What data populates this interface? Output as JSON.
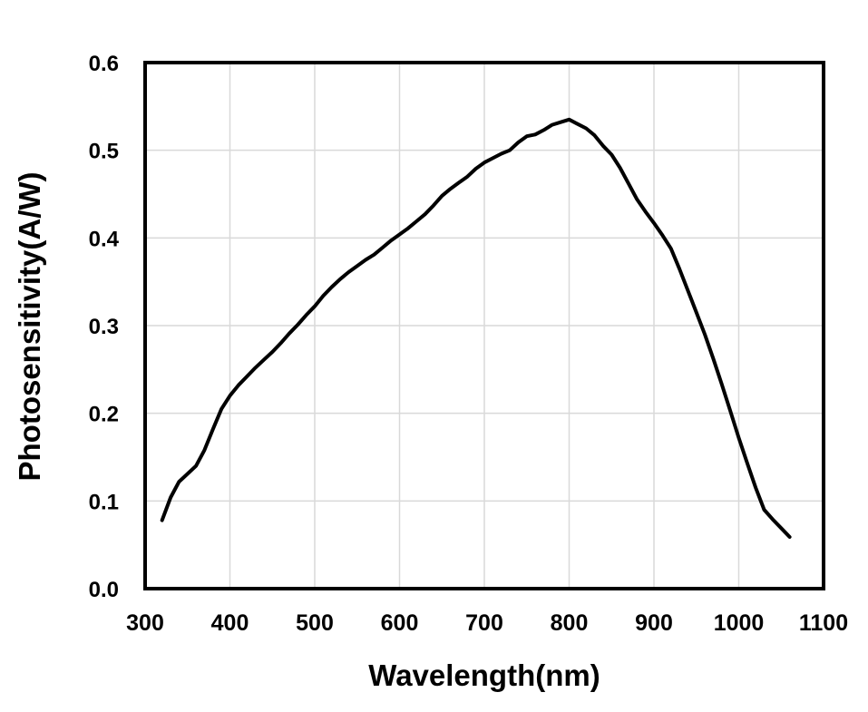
{
  "chart_data": {
    "type": "line",
    "title": "",
    "xlabel": "Wavelength(nm)",
    "ylabel": "Photosensitivity(A/W)",
    "xlim": [
      300,
      1100
    ],
    "ylim": [
      0.0,
      0.6
    ],
    "x_ticks": [
      "300",
      "400",
      "500",
      "600",
      "700",
      "800",
      "900",
      "1000",
      "1100"
    ],
    "y_ticks": [
      "0.0",
      "0.1",
      "0.2",
      "0.3",
      "0.4",
      "0.5",
      "0.6"
    ],
    "grid": true,
    "legend": false,
    "peak": {
      "wavelength_nm": 800,
      "photosensitivity_aw": 0.535
    },
    "series": [
      {
        "name": "photosensitivity",
        "color": "#000000",
        "x": [
          320,
          330,
          340,
          350,
          360,
          370,
          380,
          390,
          400,
          410,
          420,
          430,
          440,
          450,
          460,
          470,
          480,
          490,
          500,
          510,
          520,
          530,
          540,
          550,
          560,
          570,
          580,
          590,
          600,
          610,
          620,
          630,
          640,
          650,
          660,
          670,
          680,
          690,
          700,
          710,
          720,
          730,
          740,
          750,
          760,
          770,
          780,
          790,
          800,
          810,
          820,
          830,
          840,
          850,
          860,
          870,
          880,
          890,
          900,
          910,
          920,
          930,
          940,
          950,
          960,
          970,
          980,
          990,
          1000,
          1010,
          1020,
          1030,
          1040,
          1050,
          1060
        ],
        "y": [
          0.078,
          0.104,
          0.122,
          0.131,
          0.14,
          0.158,
          0.182,
          0.205,
          0.22,
          0.232,
          0.242,
          0.252,
          0.261,
          0.27,
          0.28,
          0.291,
          0.301,
          0.312,
          0.322,
          0.334,
          0.344,
          0.353,
          0.361,
          0.368,
          0.375,
          0.381,
          0.389,
          0.397,
          0.404,
          0.411,
          0.419,
          0.427,
          0.437,
          0.448,
          0.456,
          0.463,
          0.47,
          0.479,
          0.486,
          0.491,
          0.496,
          0.5,
          0.509,
          0.516,
          0.518,
          0.523,
          0.529,
          0.532,
          0.535,
          0.53,
          0.525,
          0.517,
          0.505,
          0.495,
          0.48,
          0.462,
          0.444,
          0.43,
          0.417,
          0.403,
          0.388,
          0.365,
          0.34,
          0.315,
          0.29,
          0.262,
          0.233,
          0.203,
          0.172,
          0.143,
          0.115,
          0.09,
          0.079,
          0.069,
          0.059
        ]
      }
    ]
  },
  "styles": {
    "background": "#ffffff",
    "grid_color": "#d9d9d9",
    "axis_color": "#000000",
    "line_color": "#000000",
    "text_color": "#000000"
  }
}
